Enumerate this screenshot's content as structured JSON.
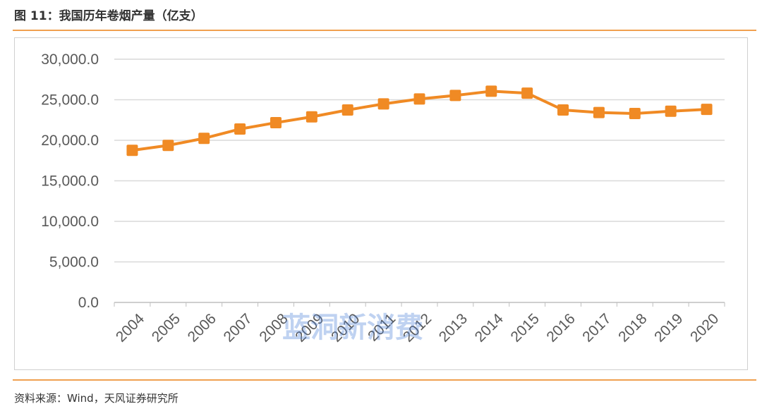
{
  "title": "图 11：我国历年卷烟产量（亿支）",
  "source": "资料来源：Wind，天风证券研究所",
  "watermark": "蓝洞新消费",
  "chart_data": {
    "type": "line",
    "categories": [
      "2004",
      "2005",
      "2006",
      "2007",
      "2008",
      "2009",
      "2010",
      "2011",
      "2012",
      "2013",
      "2014",
      "2015",
      "2016",
      "2017",
      "2018",
      "2019",
      "2020"
    ],
    "series": [
      {
        "values": [
          18760,
          19370,
          20240,
          21390,
          22170,
          22890,
          23740,
          24490,
          25100,
          25530,
          26050,
          25820,
          23740,
          23420,
          23300,
          23590,
          23820
        ],
        "color": "#f08a24"
      }
    ],
    "yticks": [
      "0.0",
      "5,000.0",
      "10,000.0",
      "15,000.0",
      "20,000.0",
      "25,000.0",
      "30,000.0"
    ],
    "ylim": [
      0,
      30000
    ],
    "grid": true,
    "marker": "square"
  }
}
